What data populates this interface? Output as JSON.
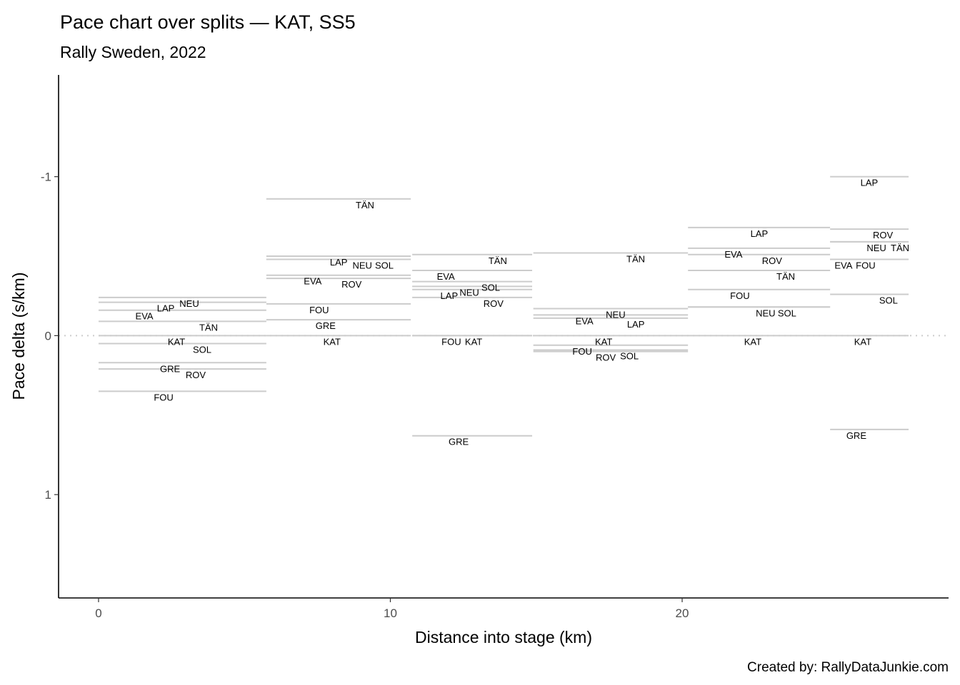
{
  "chart_data": {
    "type": "line",
    "title": "Pace chart over splits — KAT, SS5",
    "subtitle": "Rally Sweden, 2022",
    "xlabel": "Distance into stage (km)",
    "ylabel": "Pace delta (s/km)",
    "caption": "Created by: RallyDataJunkie.com",
    "xlim": [
      -1.37,
      29.13
    ],
    "ylim": [
      -1.64,
      1.65
    ],
    "y_reversed": true,
    "xticks": [
      {
        "v": 0,
        "label": "0"
      },
      {
        "v": 10,
        "label": "10"
      },
      {
        "v": 20,
        "label": "20"
      }
    ],
    "yticks": [
      {
        "v": -1,
        "label": "-1"
      },
      {
        "v": 0,
        "label": "0"
      },
      {
        "v": 1,
        "label": "1"
      }
    ],
    "reference_line": 0,
    "line_color": "#cccccc",
    "splits": [
      {
        "start": 0,
        "end": 5.75,
        "drivers": [
          {
            "name": "NEU",
            "pace": -0.24,
            "label_x": 3.11
          },
          {
            "name": "LAP",
            "pace": -0.21,
            "label_x": 2.89
          },
          {
            "name": "EVA",
            "pace": -0.16,
            "label_x": 2.01
          },
          {
            "name": "TÄN",
            "pace": -0.09,
            "label_x": 3.77
          },
          {
            "name": "KAT",
            "pace": 0,
            "label_x": 2.67
          },
          {
            "name": "SOL",
            "pace": 0.05,
            "label_x": 3.55
          },
          {
            "name": "GRE",
            "pace": 0.17,
            "label_x": 2.45
          },
          {
            "name": "ROV",
            "pace": 0.21,
            "label_x": 3.33
          },
          {
            "name": "FOU",
            "pace": 0.35,
            "label_x": 2.23
          }
        ]
      },
      {
        "start": 5.75,
        "end": 10.7,
        "drivers": [
          {
            "name": "TÄN",
            "pace": -0.86,
            "label_x": 9.13
          },
          {
            "name": "LAP",
            "pace": -0.5,
            "label_x": 8.23
          },
          {
            "name": "NEU",
            "pace": -0.48,
            "label_x": 8.45
          },
          {
            "name": "SOL",
            "pace": -0.48,
            "label_x": 8.91
          },
          {
            "name": "EVA",
            "pace": -0.38,
            "label_x": 7.34
          },
          {
            "name": "ROV",
            "pace": -0.36,
            "label_x": 8.67
          },
          {
            "name": "FOU",
            "pace": -0.2,
            "label_x": 7.56
          },
          {
            "name": "GRE",
            "pace": -0.1,
            "label_x": 7.78
          },
          {
            "name": "KAT",
            "pace": 0,
            "label_x": 8.0
          }
        ]
      },
      {
        "start": 10.75,
        "end": 14.86,
        "drivers": [
          {
            "name": "TÄN",
            "pace": -0.51,
            "label_x": 13.68
          },
          {
            "name": "EVA",
            "pace": -0.41,
            "label_x": 11.9
          },
          {
            "name": "SOL",
            "pace": -0.34,
            "label_x": 13.44
          },
          {
            "name": "NEU",
            "pace": -0.31,
            "label_x": 13.0
          },
          {
            "name": "LAP",
            "pace": -0.29,
            "label_x": 12.75
          },
          {
            "name": "ROV",
            "pace": -0.24,
            "label_x": 13.24
          },
          {
            "name": "FOU",
            "pace": 0,
            "label_x": 12.09
          },
          {
            "name": "KAT",
            "pace": 0,
            "label_x": 12.56
          },
          {
            "name": "GRE",
            "pace": 0.63,
            "label_x": 12.34
          }
        ]
      },
      {
        "start": 14.9,
        "end": 20.2,
        "drivers": [
          {
            "name": "TÄN",
            "pace": -0.52,
            "label_x": 18.41
          },
          {
            "name": "NEU",
            "pace": -0.17,
            "label_x": 17.72
          },
          {
            "name": "EVA",
            "pace": -0.13,
            "label_x": 16.65
          },
          {
            "name": "LAP",
            "pace": -0.11,
            "label_x": 17.53
          },
          {
            "name": "KAT",
            "pace": 0,
            "label_x": 17.31
          },
          {
            "name": "FOU",
            "pace": 0.06,
            "label_x": 16.87
          },
          {
            "name": "SOL",
            "pace": 0.09,
            "label_x": 18.19
          },
          {
            "name": "ROV",
            "pace": 0.1,
            "label_x": 17.97
          }
        ]
      },
      {
        "start": 20.2,
        "end": 25.07,
        "drivers": [
          {
            "name": "LAP",
            "pace": -0.68,
            "label_x": 22.64
          },
          {
            "name": "EVA",
            "pace": -0.55,
            "label_x": 21.76
          },
          {
            "name": "ROV",
            "pace": -0.51,
            "label_x": 23.08
          },
          {
            "name": "TÄN",
            "pace": -0.41,
            "label_x": 23.55
          },
          {
            "name": "FOU",
            "pace": -0.29,
            "label_x": 21.98
          },
          {
            "name": "NEU",
            "pace": -0.18,
            "label_x": 22.86
          },
          {
            "name": "SOL",
            "pace": -0.18,
            "label_x": 23.3
          },
          {
            "name": "KAT",
            "pace": 0,
            "label_x": 22.42
          }
        ]
      },
      {
        "start": 25.07,
        "end": 27.76,
        "drivers": [
          {
            "name": "LAP",
            "pace": -1.0,
            "label_x": 26.41
          },
          {
            "name": "ROV",
            "pace": -0.67,
            "label_x": 26.88
          },
          {
            "name": "NEU",
            "pace": -0.59,
            "label_x": 26.66
          },
          {
            "name": "TÄN",
            "pace": -0.59,
            "label_x": 27.32
          },
          {
            "name": "EVA",
            "pace": -0.48,
            "label_x": 25.53
          },
          {
            "name": "FOU",
            "pace": -0.48,
            "label_x": 25.7
          },
          {
            "name": "SOL",
            "pace": -0.26,
            "label_x": 27.07
          },
          {
            "name": "KAT",
            "pace": 0,
            "label_x": 26.19
          },
          {
            "name": "GRE",
            "pace": 0.59,
            "label_x": 25.97
          }
        ]
      }
    ]
  }
}
